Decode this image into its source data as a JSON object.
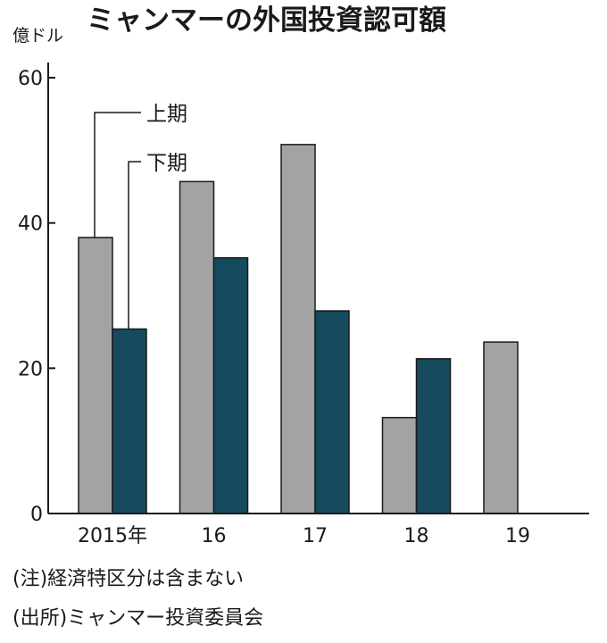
{
  "chart_data": {
    "type": "bar",
    "title": "ミャンマーの外国投資認可額",
    "unit_label": "億ドル",
    "categories": [
      "2015年",
      "16",
      "17",
      "18",
      "19"
    ],
    "series": [
      {
        "name": "上期",
        "color": "#a3a3a3",
        "values": [
          38,
          45.7,
          50.8,
          13.2,
          23.6
        ]
      },
      {
        "name": "下期",
        "color": "#164a5e",
        "values": [
          25.4,
          35.2,
          27.9,
          21.3,
          null
        ]
      }
    ],
    "yticks": [
      0,
      20,
      40,
      60
    ],
    "ylim": [
      0,
      60
    ],
    "grid": false,
    "legend": "callout"
  },
  "notes": [
    "(注)経済特区分は含まない",
    "(出所)ミャンマー投資委員会"
  ]
}
